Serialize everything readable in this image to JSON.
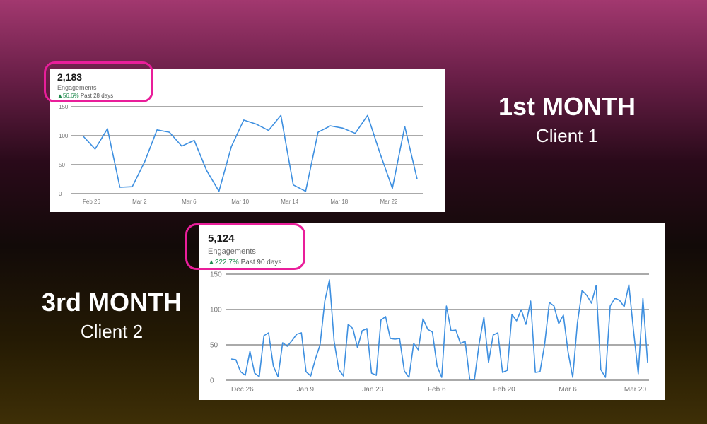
{
  "headings": [
    {
      "title": "1st MONTH",
      "subtitle": "Client 1"
    },
    {
      "title": "3rd MONTH",
      "subtitle": "Client 2"
    }
  ],
  "colors": {
    "line": "#3d8fe0",
    "highlight": "#e91e9a",
    "positive": "#1e8a4c"
  },
  "chart_data": [
    {
      "type": "line",
      "metric_value": "2,183",
      "metric_label": "Engagements",
      "change": "56.6%",
      "period": "Past 28 days",
      "ylim": [
        0,
        150
      ],
      "yticks": [
        0,
        50,
        100,
        150
      ],
      "xticks": [
        {
          "label": "Feb 26",
          "index": 0
        },
        {
          "label": "Mar 2",
          "index": 4
        },
        {
          "label": "Mar 6",
          "index": 8
        },
        {
          "label": "Mar 10",
          "index": 12
        },
        {
          "label": "Mar 14",
          "index": 16
        },
        {
          "label": "Mar 18",
          "index": 20
        },
        {
          "label": "Mar 22",
          "index": 24
        }
      ],
      "x": [
        "Feb 26",
        "Feb 27",
        "Feb 28",
        "Mar 1",
        "Mar 2",
        "Mar 3",
        "Mar 4",
        "Mar 5",
        "Mar 6",
        "Mar 7",
        "Mar 8",
        "Mar 9",
        "Mar 10",
        "Mar 11",
        "Mar 12",
        "Mar 13",
        "Mar 14",
        "Mar 15",
        "Mar 16",
        "Mar 17",
        "Mar 18",
        "Mar 19",
        "Mar 20",
        "Mar 21",
        "Mar 22",
        "Mar 23",
        "Mar 24",
        "Mar 25"
      ],
      "values": [
        100,
        77,
        112,
        11,
        12,
        55,
        110,
        106,
        82,
        92,
        40,
        4,
        81,
        127,
        120,
        109,
        135,
        15,
        4,
        106,
        117,
        113,
        104,
        135,
        70,
        9,
        116,
        25
      ],
      "grid": true
    },
    {
      "type": "line",
      "metric_value": "5,124",
      "metric_label": "Engagements",
      "change": "222.7%",
      "period": "Past 90 days",
      "ylim": [
        0,
        150
      ],
      "yticks": [
        0,
        50,
        100,
        150
      ],
      "xticks": [
        {
          "label": "Dec 26",
          "index": 0
        },
        {
          "label": "Jan 9",
          "index": 14
        },
        {
          "label": "Jan 23",
          "index": 28
        },
        {
          "label": "Feb 6",
          "index": 42
        },
        {
          "label": "Feb 20",
          "index": 56
        },
        {
          "label": "Mar 6",
          "index": 70
        },
        {
          "label": "Mar 20",
          "index": 84
        }
      ],
      "values": [
        30,
        29,
        12,
        7,
        41,
        10,
        5,
        63,
        67,
        20,
        5,
        53,
        48,
        56,
        65,
        67,
        12,
        6,
        30,
        50,
        112,
        142,
        55,
        15,
        6,
        79,
        73,
        46,
        70,
        73,
        10,
        7,
        85,
        90,
        59,
        58,
        59,
        13,
        4,
        52,
        43,
        87,
        72,
        68,
        20,
        4,
        105,
        70,
        71,
        52,
        55,
        1,
        1,
        52,
        89,
        25,
        64,
        67,
        11,
        14,
        93,
        84,
        100,
        79,
        112,
        11,
        12,
        51,
        110,
        105,
        80,
        92,
        40,
        4,
        81,
        127,
        120,
        109,
        134,
        15,
        4,
        105,
        116,
        113,
        104,
        135,
        70,
        9,
        116,
        25
      ],
      "grid": true
    }
  ]
}
